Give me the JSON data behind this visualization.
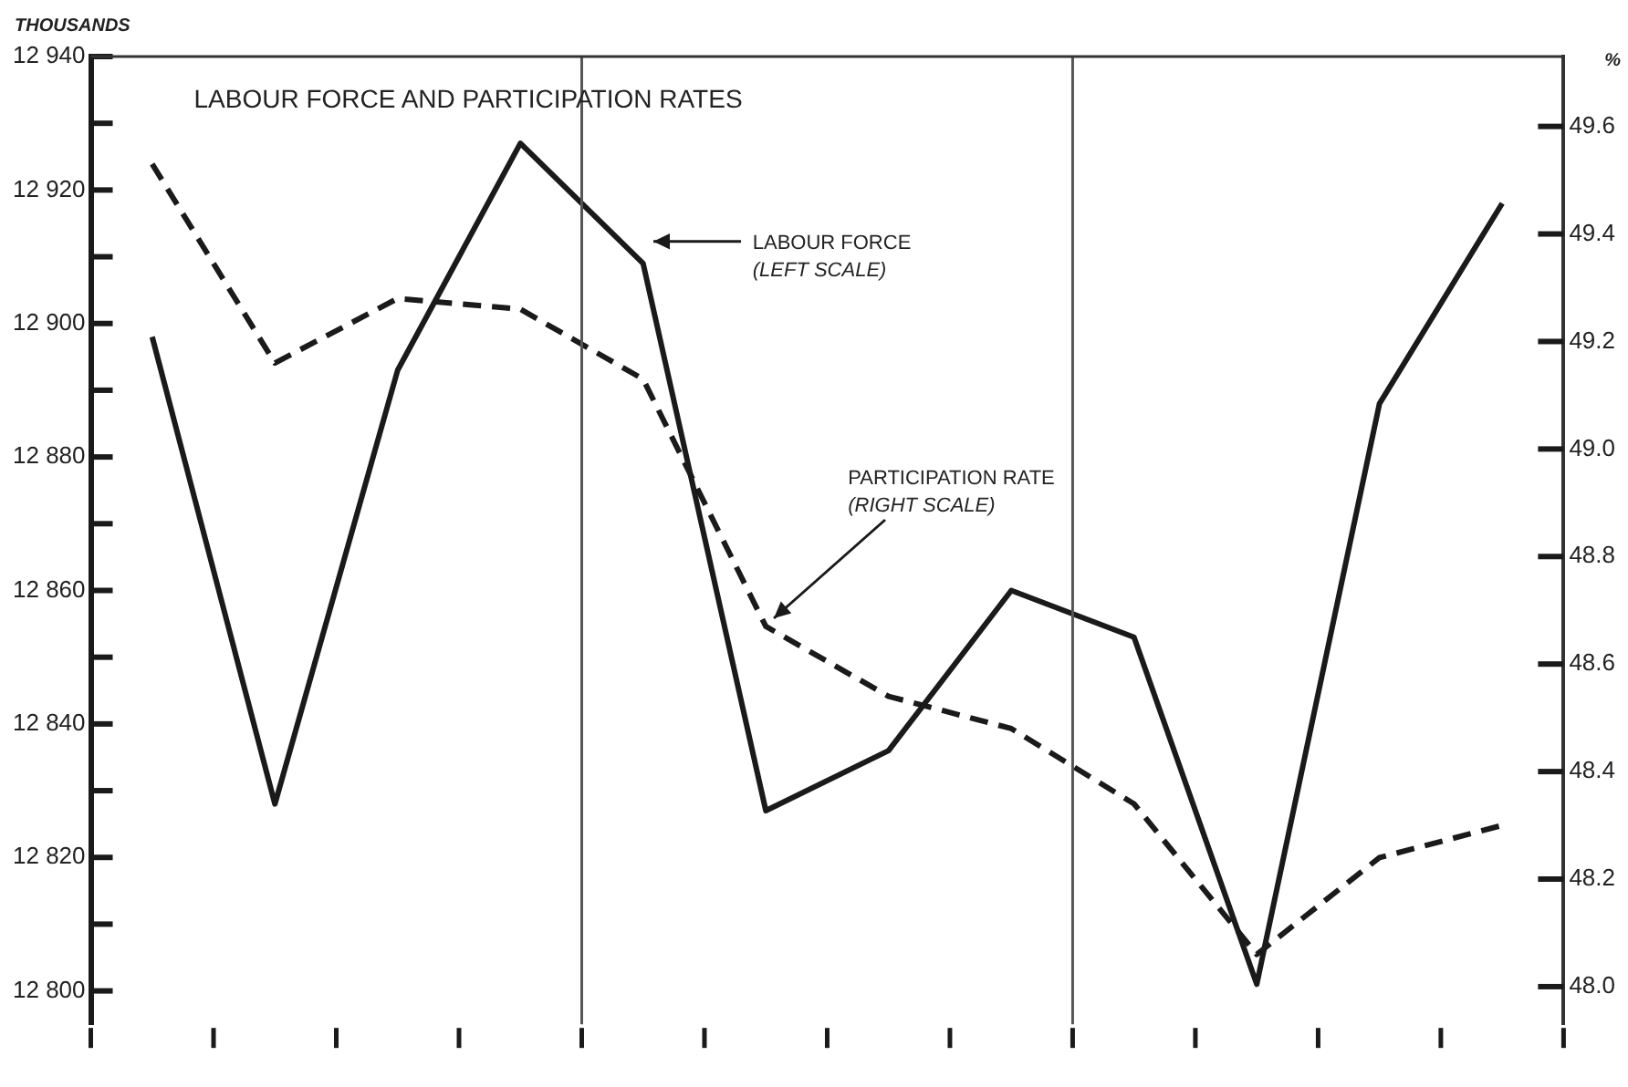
{
  "chart_data": {
    "type": "line",
    "title": "LABOUR FORCE AND PARTICIPATION RATES",
    "ylabel": "THOUSANDS",
    "y2label": "%",
    "categories": [
      null,
      null,
      null,
      null,
      null,
      null,
      null,
      null,
      null,
      null,
      null,
      null
    ],
    "ylim": [
      12795,
      12940
    ],
    "yticks": [
      {
        "value": 12800,
        "label": "12 800"
      },
      {
        "value": 12810,
        "label": null
      },
      {
        "value": 12820,
        "label": "12 820"
      },
      {
        "value": 12830,
        "label": null
      },
      {
        "value": 12840,
        "label": "12 840"
      },
      {
        "value": 12850,
        "label": null
      },
      {
        "value": 12860,
        "label": "12 860"
      },
      {
        "value": 12870,
        "label": null
      },
      {
        "value": 12880,
        "label": "12 880"
      },
      {
        "value": 12890,
        "label": null
      },
      {
        "value": 12900,
        "label": "12 900"
      },
      {
        "value": 12910,
        "label": null
      },
      {
        "value": 12920,
        "label": "12 920"
      },
      {
        "value": 12930,
        "label": null
      },
      {
        "value": 12940,
        "label": "12 940"
      }
    ],
    "y2lim": [
      47.93,
      49.73
    ],
    "y2ticks": [
      {
        "value": 48,
        "label": "48.0"
      },
      {
        "value": 48.2,
        "label": "48.2"
      },
      {
        "value": 48.4,
        "label": "48.4"
      },
      {
        "value": 48.6,
        "label": "48.6"
      },
      {
        "value": 48.8,
        "label": "48.8"
      },
      {
        "value": 49,
        "label": "49.0"
      },
      {
        "value": 49.2,
        "label": "49.2"
      },
      {
        "value": 49.4,
        "label": "49.4"
      },
      {
        "value": 49.6,
        "label": "49.6"
      }
    ],
    "series": [
      {
        "color": "#1a1a1a",
        "line_style": "solid",
        "values": [
          12898,
          12828,
          12893,
          12927,
          12909,
          12827,
          12836,
          12860,
          12853,
          12801,
          12888,
          12918
        ]
      },
      {
        "color": "#1a1a1a",
        "line_style": "dashed",
        "axis": "y2",
        "values": [
          49.53,
          49.16,
          49.28,
          49.26,
          49.13,
          48.67,
          48.54,
          48.48,
          48.34,
          48.06,
          48.24,
          48.3
        ]
      }
    ],
    "annotations": [
      "LABOUR FORCE\n(LEFT SCALE)",
      "PARTICIPATION RATE\n(RIGHT SCALE)"
    ],
    "grid": false,
    "legend": false,
    "marker": "none"
  }
}
